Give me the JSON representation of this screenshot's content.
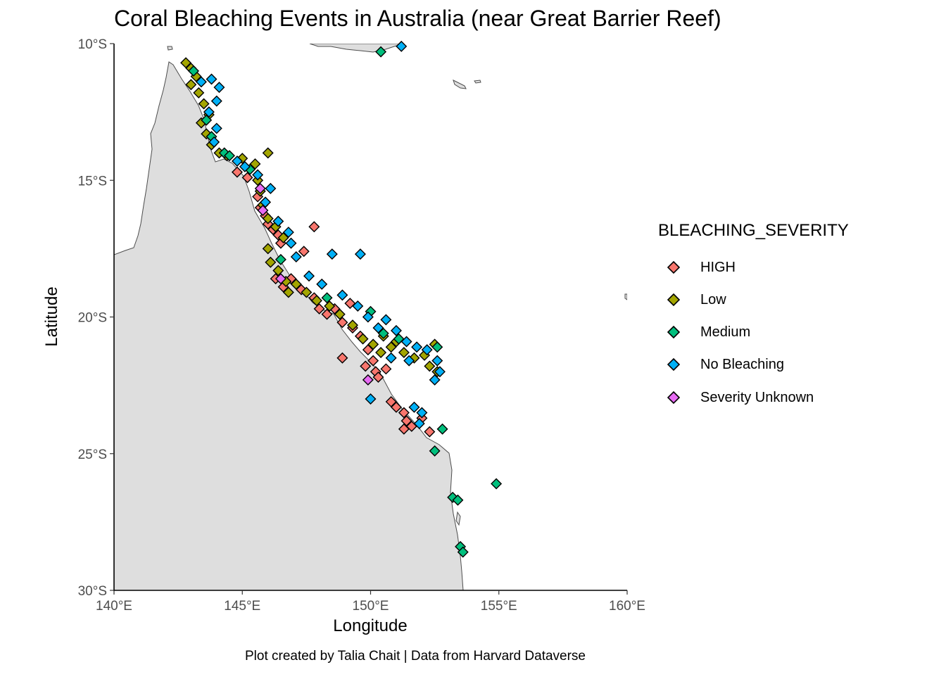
{
  "chart_data": {
    "type": "scatter",
    "title": "Coral Bleaching Events in Australia (near Great Barrier Reef)",
    "xlabel": "Longitude",
    "ylabel": "Latitude",
    "caption": "Plot created by Talia Chait | Data from Harvard Dataverse",
    "xlim": [
      140,
      160
    ],
    "ylim": [
      -30,
      -10
    ],
    "x_ticks": [
      140,
      145,
      150,
      155,
      160
    ],
    "x_tick_labels": [
      "140°E",
      "145°E",
      "150°E",
      "155°E",
      "160°E"
    ],
    "y_ticks": [
      -10,
      -15,
      -20,
      -25,
      -30
    ],
    "y_tick_labels": [
      "10°S",
      "15°S",
      "20°S",
      "25°S",
      "30°S"
    ],
    "grid": false,
    "legend_position": "right",
    "marker": "diamond",
    "legend": {
      "title": "BLEACHING_SEVERITY",
      "entries": [
        {
          "label": "HIGH",
          "color": "#F8766D"
        },
        {
          "label": "Low",
          "color": "#A3A500"
        },
        {
          "label": "Medium",
          "color": "#00BF7D"
        },
        {
          "label": "No Bleaching",
          "color": "#00B0F6"
        },
        {
          "label": "Severity Unknown",
          "color": "#E76BF3"
        }
      ]
    },
    "land_color": "#DEDEDE",
    "series": [
      {
        "name": "HIGH",
        "color": "#F8766D",
        "points": [
          [
            144.8,
            -14.7
          ],
          [
            145.2,
            -14.9
          ],
          [
            145.6,
            -15.6
          ],
          [
            145.7,
            -16.0
          ],
          [
            145.9,
            -16.3
          ],
          [
            146.0,
            -16.6
          ],
          [
            146.2,
            -16.8
          ],
          [
            146.4,
            -17.0
          ],
          [
            146.5,
            -17.3
          ],
          [
            147.8,
            -16.7
          ],
          [
            147.4,
            -17.6
          ],
          [
            146.3,
            -18.6
          ],
          [
            146.6,
            -18.9
          ],
          [
            146.9,
            -18.6
          ],
          [
            147.3,
            -19.0
          ],
          [
            147.8,
            -19.3
          ],
          [
            148.0,
            -19.7
          ],
          [
            148.3,
            -19.9
          ],
          [
            148.6,
            -19.7
          ],
          [
            148.9,
            -20.2
          ],
          [
            149.2,
            -19.5
          ],
          [
            149.3,
            -20.4
          ],
          [
            149.6,
            -20.7
          ],
          [
            149.9,
            -21.2
          ],
          [
            150.1,
            -21.6
          ],
          [
            150.2,
            -22.0
          ],
          [
            150.3,
            -22.2
          ],
          [
            149.8,
            -21.8
          ],
          [
            148.9,
            -21.5
          ],
          [
            150.6,
            -21.9
          ],
          [
            150.8,
            -23.1
          ],
          [
            151.0,
            -23.3
          ],
          [
            151.3,
            -23.5
          ],
          [
            151.4,
            -23.8
          ],
          [
            151.6,
            -24.0
          ],
          [
            151.3,
            -24.1
          ],
          [
            152.0,
            -23.7
          ],
          [
            152.3,
            -24.2
          ]
        ]
      },
      {
        "name": "Low",
        "color": "#A3A500",
        "points": [
          [
            142.8,
            -10.7
          ],
          [
            143.0,
            -10.9
          ],
          [
            143.2,
            -11.2
          ],
          [
            143.0,
            -11.5
          ],
          [
            143.3,
            -11.8
          ],
          [
            143.5,
            -12.2
          ],
          [
            143.7,
            -12.6
          ],
          [
            143.4,
            -12.9
          ],
          [
            143.6,
            -13.3
          ],
          [
            143.8,
            -13.7
          ],
          [
            144.1,
            -14.0
          ],
          [
            144.4,
            -14.1
          ],
          [
            145.0,
            -14.2
          ],
          [
            145.5,
            -14.4
          ],
          [
            146.0,
            -14.0
          ],
          [
            145.6,
            -15.0
          ],
          [
            145.7,
            -15.4
          ],
          [
            145.8,
            -15.9
          ],
          [
            146.0,
            -16.4
          ],
          [
            146.3,
            -16.7
          ],
          [
            146.6,
            -17.1
          ],
          [
            146.0,
            -17.5
          ],
          [
            146.1,
            -18.0
          ],
          [
            146.4,
            -18.3
          ],
          [
            146.7,
            -18.7
          ],
          [
            146.8,
            -19.1
          ],
          [
            147.1,
            -18.8
          ],
          [
            147.5,
            -19.1
          ],
          [
            147.9,
            -19.4
          ],
          [
            148.4,
            -19.6
          ],
          [
            148.8,
            -19.9
          ],
          [
            149.3,
            -20.3
          ],
          [
            149.7,
            -20.8
          ],
          [
            150.1,
            -21.0
          ],
          [
            150.4,
            -21.3
          ],
          [
            150.8,
            -21.1
          ],
          [
            151.3,
            -21.3
          ],
          [
            151.7,
            -21.5
          ],
          [
            152.1,
            -21.4
          ],
          [
            152.5,
            -21.0
          ],
          [
            152.3,
            -21.8
          ],
          [
            152.6,
            -22.0
          ],
          [
            151.0,
            -20.9
          ],
          [
            150.5,
            -20.7
          ]
        ]
      },
      {
        "name": "Medium",
        "color": "#00BF7D",
        "points": [
          [
            150.4,
            -10.3
          ],
          [
            143.1,
            -11.0
          ],
          [
            143.6,
            -12.8
          ],
          [
            143.8,
            -13.4
          ],
          [
            144.3,
            -14.0
          ],
          [
            144.5,
            -14.1
          ],
          [
            145.3,
            -14.6
          ],
          [
            146.5,
            -17.9
          ],
          [
            148.3,
            -19.3
          ],
          [
            150.0,
            -19.8
          ],
          [
            150.5,
            -20.6
          ],
          [
            151.1,
            -20.8
          ],
          [
            152.6,
            -21.1
          ],
          [
            152.8,
            -24.1
          ],
          [
            152.5,
            -24.9
          ],
          [
            154.9,
            -26.1
          ],
          [
            153.2,
            -26.6
          ],
          [
            153.4,
            -26.7
          ],
          [
            153.5,
            -28.4
          ],
          [
            153.6,
            -28.6
          ]
        ]
      },
      {
        "name": "No Bleaching",
        "color": "#00B0F6",
        "points": [
          [
            151.2,
            -10.1
          ],
          [
            143.4,
            -11.4
          ],
          [
            143.8,
            -11.3
          ],
          [
            144.1,
            -11.6
          ],
          [
            144.0,
            -12.1
          ],
          [
            143.7,
            -12.5
          ],
          [
            144.0,
            -13.1
          ],
          [
            143.9,
            -13.6
          ],
          [
            144.8,
            -14.3
          ],
          [
            145.1,
            -14.5
          ],
          [
            145.6,
            -14.8
          ],
          [
            146.1,
            -15.3
          ],
          [
            145.9,
            -15.8
          ],
          [
            146.4,
            -16.5
          ],
          [
            146.8,
            -16.9
          ],
          [
            146.9,
            -17.3
          ],
          [
            148.5,
            -17.7
          ],
          [
            149.6,
            -17.7
          ],
          [
            147.1,
            -17.8
          ],
          [
            147.6,
            -18.5
          ],
          [
            148.1,
            -18.8
          ],
          [
            148.9,
            -19.2
          ],
          [
            149.5,
            -19.6
          ],
          [
            149.9,
            -20.0
          ],
          [
            150.3,
            -20.4
          ],
          [
            150.6,
            -20.1
          ],
          [
            151.0,
            -20.5
          ],
          [
            151.4,
            -20.9
          ],
          [
            151.8,
            -21.1
          ],
          [
            152.2,
            -21.2
          ],
          [
            152.6,
            -21.6
          ],
          [
            152.7,
            -22.0
          ],
          [
            152.5,
            -22.3
          ],
          [
            150.0,
            -23.0
          ],
          [
            151.7,
            -23.3
          ],
          [
            152.0,
            -23.5
          ],
          [
            151.9,
            -23.9
          ],
          [
            150.8,
            -21.5
          ],
          [
            151.5,
            -21.6
          ]
        ]
      },
      {
        "name": "Severity Unknown",
        "color": "#E76BF3",
        "points": [
          [
            145.7,
            -15.3
          ],
          [
            145.8,
            -16.1
          ],
          [
            146.5,
            -18.6
          ],
          [
            149.9,
            -22.3
          ]
        ]
      }
    ]
  }
}
